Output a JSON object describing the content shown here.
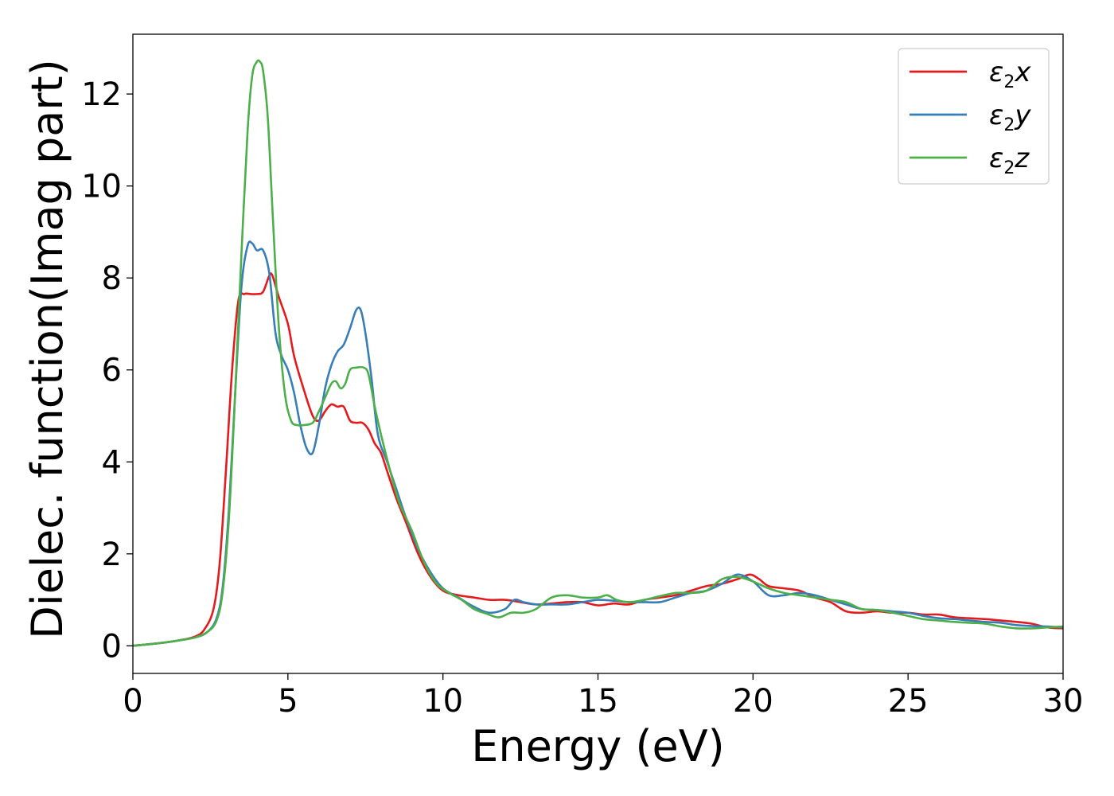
{
  "chart_data": {
    "type": "line",
    "title": "",
    "xlabel": "Energy (eV)",
    "ylabel": "Dielec. function(Imag part)",
    "xlim": [
      0,
      30
    ],
    "ylim": [
      -0.6,
      13.3
    ],
    "xticks": [
      0,
      5,
      10,
      15,
      20,
      25,
      30
    ],
    "yticks": [
      0,
      2,
      4,
      6,
      8,
      10,
      12
    ],
    "grid": false,
    "legend_position": "top-right",
    "series": [
      {
        "name": "ε2x",
        "legend_base": "ε",
        "legend_sub": "2",
        "legend_tail": "x",
        "color": "#e41a1c",
        "x": [
          0,
          1,
          1.5,
          2,
          2.3,
          2.6,
          2.8,
          3.0,
          3.2,
          3.4,
          3.6,
          3.8,
          4.0,
          4.2,
          4.4,
          4.5,
          4.7,
          5.0,
          5.2,
          5.5,
          5.8,
          6.0,
          6.2,
          6.4,
          6.6,
          6.8,
          7.0,
          7.2,
          7.4,
          7.6,
          7.8,
          8.0,
          8.2,
          8.5,
          8.8,
          9.2,
          9.6,
          10.0,
          10.5,
          11.0,
          11.5,
          12.0,
          12.5,
          13.0,
          13.5,
          14.0,
          14.5,
          15.0,
          15.5,
          16.0,
          16.5,
          17.0,
          17.5,
          18.0,
          18.5,
          19.0,
          19.5,
          19.9,
          20.2,
          20.5,
          21.0,
          21.5,
          22.0,
          22.5,
          23.0,
          23.5,
          24.0,
          24.5,
          25.0,
          25.5,
          26.0,
          26.5,
          27.0,
          27.5,
          28.0,
          28.5,
          29.0,
          29.5,
          30.0
        ],
        "y": [
          0.0,
          0.07,
          0.12,
          0.2,
          0.35,
          0.8,
          1.8,
          3.8,
          6.0,
          7.5,
          7.65,
          7.65,
          7.65,
          7.7,
          8.05,
          8.05,
          7.6,
          7.0,
          6.3,
          5.6,
          5.0,
          4.9,
          5.1,
          5.25,
          5.2,
          5.2,
          4.9,
          4.85,
          4.85,
          4.7,
          4.4,
          4.2,
          3.8,
          3.2,
          2.7,
          2.0,
          1.5,
          1.2,
          1.1,
          1.05,
          1.0,
          1.0,
          0.95,
          0.9,
          0.92,
          0.95,
          0.95,
          0.88,
          0.92,
          0.9,
          1.0,
          1.05,
          1.1,
          1.2,
          1.3,
          1.35,
          1.45,
          1.55,
          1.45,
          1.3,
          1.25,
          1.2,
          1.05,
          0.95,
          0.75,
          0.72,
          0.75,
          0.72,
          0.72,
          0.68,
          0.68,
          0.62,
          0.6,
          0.58,
          0.55,
          0.52,
          0.48,
          0.4,
          0.38
        ]
      },
      {
        "name": "ε2y",
        "legend_base": "ε",
        "legend_sub": "2",
        "legend_tail": "y",
        "color": "#377eb8",
        "x": [
          0,
          1,
          1.5,
          2,
          2.4,
          2.7,
          2.9,
          3.1,
          3.3,
          3.5,
          3.7,
          3.85,
          4.0,
          4.2,
          4.4,
          4.6,
          4.8,
          5.0,
          5.2,
          5.4,
          5.6,
          5.8,
          6.0,
          6.2,
          6.4,
          6.6,
          6.8,
          7.0,
          7.2,
          7.35,
          7.5,
          7.7,
          7.9,
          8.2,
          8.5,
          8.8,
          9.2,
          9.6,
          10.0,
          10.5,
          11.0,
          11.5,
          12.0,
          12.3,
          12.6,
          13.0,
          13.5,
          14.0,
          14.5,
          15.0,
          15.5,
          16.0,
          16.5,
          17.0,
          17.5,
          18.0,
          18.5,
          19.0,
          19.5,
          20.0,
          20.5,
          21.0,
          21.5,
          22.0,
          22.5,
          23.0,
          23.5,
          24.0,
          24.5,
          25.0,
          25.5,
          26.0,
          26.5,
          27.0,
          27.5,
          28.0,
          28.5,
          29.0,
          29.5,
          30.0
        ],
        "y": [
          0.0,
          0.07,
          0.12,
          0.18,
          0.3,
          0.6,
          1.3,
          3.0,
          5.5,
          7.8,
          8.7,
          8.75,
          8.6,
          8.6,
          8.1,
          6.8,
          6.3,
          6.0,
          5.5,
          4.8,
          4.3,
          4.2,
          4.8,
          5.6,
          6.1,
          6.4,
          6.55,
          6.9,
          7.3,
          7.3,
          6.8,
          5.8,
          4.6,
          4.0,
          3.4,
          2.8,
          2.1,
          1.6,
          1.25,
          1.05,
          0.85,
          0.72,
          0.8,
          1.0,
          0.95,
          0.9,
          0.9,
          0.9,
          0.95,
          1.0,
          0.98,
          0.95,
          0.95,
          0.95,
          1.05,
          1.15,
          1.2,
          1.35,
          1.55,
          1.4,
          1.1,
          1.1,
          1.15,
          1.1,
          1.0,
          0.9,
          0.8,
          0.78,
          0.75,
          0.72,
          0.65,
          0.6,
          0.58,
          0.55,
          0.52,
          0.5,
          0.45,
          0.43,
          0.42,
          0.4
        ]
      },
      {
        "name": "ε2z",
        "legend_base": "ε",
        "legend_sub": "2",
        "legend_tail": "z",
        "color": "#4daf4a",
        "x": [
          0,
          1,
          1.5,
          2,
          2.4,
          2.7,
          2.9,
          3.1,
          3.3,
          3.5,
          3.7,
          3.85,
          4.0,
          4.1,
          4.2,
          4.35,
          4.5,
          4.7,
          4.9,
          5.1,
          5.3,
          5.5,
          5.8,
          6.0,
          6.2,
          6.4,
          6.55,
          6.7,
          6.85,
          7.0,
          7.2,
          7.45,
          7.6,
          7.8,
          8.0,
          8.3,
          8.6,
          9.0,
          9.4,
          9.8,
          10.2,
          10.6,
          11.0,
          11.4,
          11.8,
          12.2,
          12.6,
          13.0,
          13.5,
          14.0,
          14.5,
          15.0,
          15.3,
          15.6,
          16.0,
          16.5,
          17.0,
          17.5,
          18.0,
          18.5,
          19.0,
          19.5,
          20.0,
          20.5,
          21.0,
          21.5,
          22.0,
          22.5,
          23.0,
          23.5,
          24.0,
          24.5,
          25.0,
          25.5,
          26.0,
          26.5,
          27.0,
          27.5,
          28.0,
          28.5,
          29.0,
          29.5,
          30.0
        ],
        "y": [
          0.0,
          0.07,
          0.12,
          0.18,
          0.3,
          0.55,
          1.2,
          2.8,
          5.5,
          8.5,
          11.2,
          12.4,
          12.7,
          12.7,
          12.5,
          11.5,
          9.5,
          7.0,
          5.5,
          4.9,
          4.8,
          4.8,
          4.85,
          5.1,
          5.4,
          5.7,
          5.75,
          5.6,
          5.7,
          6.0,
          6.05,
          6.05,
          5.9,
          5.2,
          4.6,
          3.8,
          3.1,
          2.5,
          1.8,
          1.35,
          1.15,
          1.0,
          0.8,
          0.7,
          0.62,
          0.72,
          0.72,
          0.8,
          1.05,
          1.1,
          1.05,
          1.05,
          1.1,
          1.0,
          0.95,
          1.0,
          1.08,
          1.15,
          1.15,
          1.2,
          1.45,
          1.5,
          1.4,
          1.25,
          1.15,
          1.1,
          1.05,
          1.0,
          0.95,
          0.8,
          0.78,
          0.72,
          0.65,
          0.58,
          0.55,
          0.52,
          0.5,
          0.48,
          0.42,
          0.38,
          0.38,
          0.4,
          0.42
        ]
      }
    ]
  }
}
